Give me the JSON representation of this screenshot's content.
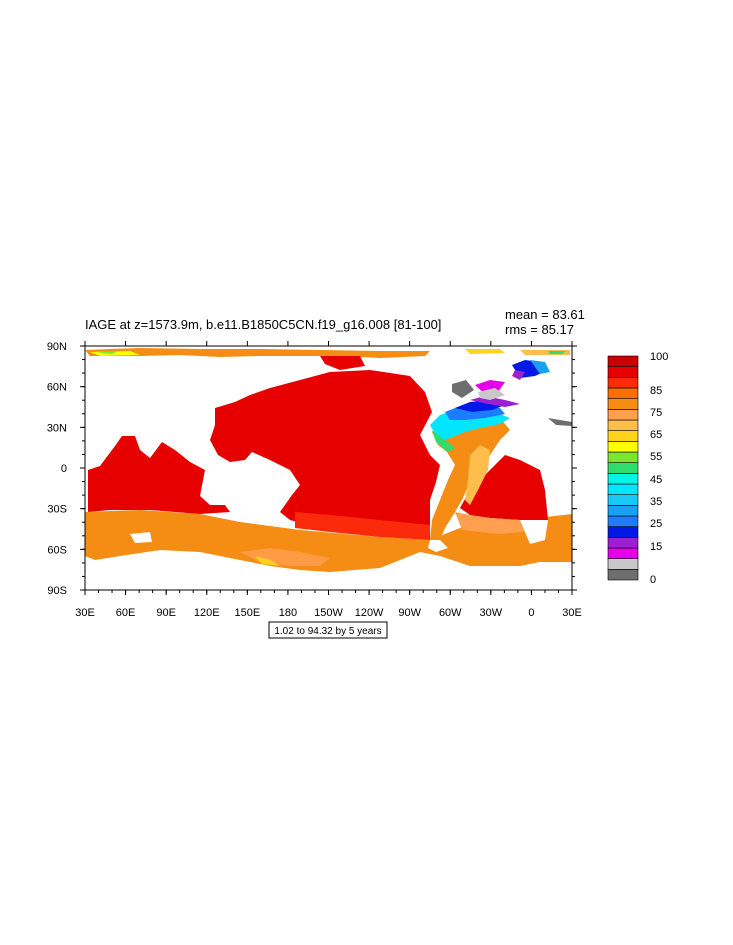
{
  "plot": {
    "title": "IAGE at z=1573.9m, b.e11.B1850C5CN.f19_g16.008 [81-100]",
    "mean_label": "mean = 83.61",
    "rms_label": "rms = 85.17",
    "info_box": "1.02 to 94.32 by 5 years"
  },
  "map": {
    "type": "filled-contour-map",
    "projection": "cylindrical-equidistant",
    "x_tick_labels": [
      "30E",
      "60E",
      "90E",
      "120E",
      "150E",
      "180",
      "150W",
      "120W",
      "90W",
      "60W",
      "30W",
      "0",
      "30E"
    ],
    "y_tick_labels": [
      "90N",
      "60N",
      "30N",
      "0",
      "30S",
      "60S",
      "90S"
    ],
    "land_color": "#ffffff",
    "dominant_values": {
      "pacific_indian_tropics": "85-95",
      "southern_ocean": "75-85",
      "north_atlantic_deep_water": "5-45",
      "arctic": "65-85"
    }
  },
  "colorbar": {
    "colors": [
      "#6e6e6e",
      "#c8c8c8",
      "#e600e6",
      "#9b1fd3",
      "#0019e6",
      "#1e7dff",
      "#19a0f0",
      "#19c8f5",
      "#00e6ff",
      "#00f5e6",
      "#2ddd6e",
      "#7ae62d",
      "#ffff00",
      "#ffd21e",
      "#ffbe4b",
      "#ffa050",
      "#f58c14",
      "#ff6e00",
      "#fa2a0a",
      "#e60000",
      "#c80000"
    ],
    "tick_labels": [
      "0",
      "15",
      "25",
      "35",
      "45",
      "55",
      "65",
      "75",
      "85",
      "100"
    ]
  }
}
